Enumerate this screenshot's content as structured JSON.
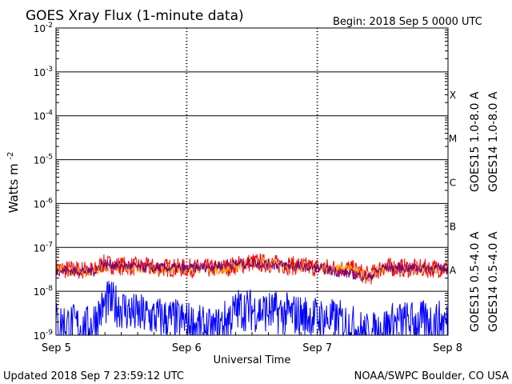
{
  "chart_data": {
    "type": "line",
    "title": "GOES Xray Flux (1-minute data)",
    "begin_label": "Begin:  2018 Sep 5 0000 UTC",
    "ylabel": "Watts m",
    "ylabel_exponent": "-2",
    "xlabel": "Universal Time",
    "yscale": "log",
    "ylim": [
      1e-09,
      0.01
    ],
    "x_ticks": [
      "Sep 5",
      "Sep 6",
      "Sep 7",
      "Sep 8"
    ],
    "y_ticks": [
      {
        "base": "10",
        "exp": "-2"
      },
      {
        "base": "10",
        "exp": "-3"
      },
      {
        "base": "10",
        "exp": "-4"
      },
      {
        "base": "10",
        "exp": "-5"
      },
      {
        "base": "10",
        "exp": "-6"
      },
      {
        "base": "10",
        "exp": "-7"
      },
      {
        "base": "10",
        "exp": "-8"
      },
      {
        "base": "10",
        "exp": "-9"
      }
    ],
    "flare_classes": [
      {
        "label": "X",
        "value": 0.0001
      },
      {
        "label": "M",
        "value": 1e-05
      },
      {
        "label": "C",
        "value": 1e-06
      },
      {
        "label": "B",
        "value": 1e-07
      },
      {
        "label": "A",
        "value": 1e-08
      }
    ],
    "series": [
      {
        "name": "GOES15 1.0-8.0 A",
        "color": "#ff0000",
        "x_days": [
          0.0,
          0.3,
          0.35,
          0.5,
          0.75,
          1.0,
          1.25,
          1.5,
          1.75,
          2.0,
          2.25,
          2.4,
          2.5,
          2.75,
          3.0
        ],
        "values": [
          3.2e-08,
          3e-08,
          4.2e-08,
          3.8e-08,
          3.5e-08,
          3.4e-08,
          3.3e-08,
          4.6e-08,
          4e-08,
          3.5e-08,
          3.3e-08,
          2.2e-08,
          3.6e-08,
          3.3e-08,
          3.4e-08
        ]
      },
      {
        "name": "GOES14 1.0-8.0 A",
        "color": "#ffa500",
        "x_days": [
          0.0,
          0.3,
          0.35,
          0.5,
          0.75,
          1.0,
          1.25,
          1.5,
          1.75,
          2.0,
          2.25,
          2.4,
          2.5,
          2.75,
          3.0
        ],
        "values": [
          3e-08,
          2.9e-08,
          4e-08,
          3.7e-08,
          3.4e-08,
          3.3e-08,
          3.2e-08,
          4.5e-08,
          3.9e-08,
          3.4e-08,
          3.2e-08,
          2.1e-08,
          3.5e-08,
          3.2e-08,
          3.3e-08
        ]
      },
      {
        "name": "GOES15 0.5-4.0 A",
        "color": "#0000ff",
        "x_days": [
          0.0,
          0.25,
          0.4,
          0.6,
          0.8,
          1.0,
          1.2,
          1.4,
          1.6,
          1.8,
          2.0,
          2.2,
          2.4,
          2.6,
          2.8,
          3.0
        ],
        "values": [
          2e-09,
          1.5e-09,
          6e-09,
          3e-09,
          2.5e-09,
          2e-09,
          1.2e-09,
          4e-09,
          3.5e-09,
          3e-09,
          2.5e-09,
          2e-09,
          1e-09,
          2e-09,
          2e-09,
          2e-09
        ]
      },
      {
        "name": "GOES14 0.5-4.0 A",
        "color": "#800080",
        "x_days": [
          0.0,
          0.3,
          0.35,
          0.6,
          1.0,
          1.5,
          2.0,
          2.4,
          2.5,
          3.0
        ],
        "values": [
          3e-08,
          2.9e-08,
          4.3e-08,
          3.6e-08,
          3.3e-08,
          4.5e-08,
          3.4e-08,
          2.1e-08,
          3.5e-08,
          3.3e-08
        ]
      }
    ]
  },
  "footer": {
    "updated": "Updated 2018 Sep  7 23:59:12 UTC",
    "source": "NOAA/SWPC Boulder, CO USA"
  }
}
